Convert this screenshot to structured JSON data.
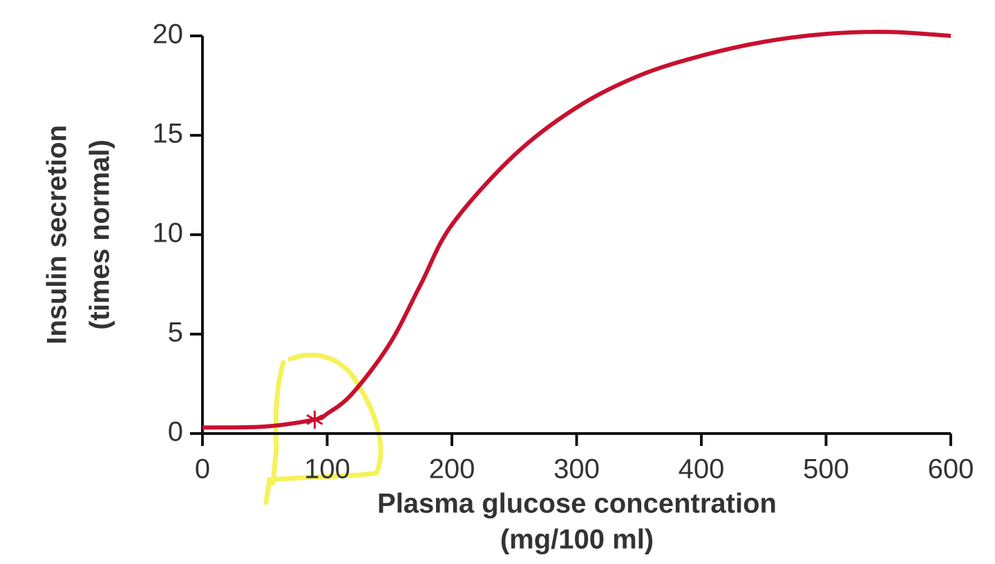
{
  "chart_data": {
    "type": "line",
    "ylabel": [
      "Insulin secretion",
      "(times normal)"
    ],
    "xlabel": [
      "Plasma glucose concentration",
      "(mg/100 ml)"
    ],
    "x": [
      0,
      50,
      90,
      100,
      120,
      150,
      175,
      200,
      250,
      300,
      350,
      400,
      450,
      500,
      550,
      600
    ],
    "series": [
      {
        "color": "#c8102e",
        "values": [
          0.3,
          0.35,
          0.7,
          1.0,
          2.0,
          4.5,
          7.5,
          10.5,
          14.0,
          16.4,
          18.0,
          19.0,
          19.7,
          20.1,
          20.2,
          20.0
        ]
      }
    ],
    "marker": {
      "x": 90,
      "y": 0.7
    },
    "xlim": [
      0,
      600
    ],
    "xticks": [
      0,
      100,
      200,
      300,
      400,
      500,
      600
    ],
    "ylim": [
      0,
      20
    ],
    "yticks": [
      0,
      5,
      10,
      15,
      20
    ]
  }
}
